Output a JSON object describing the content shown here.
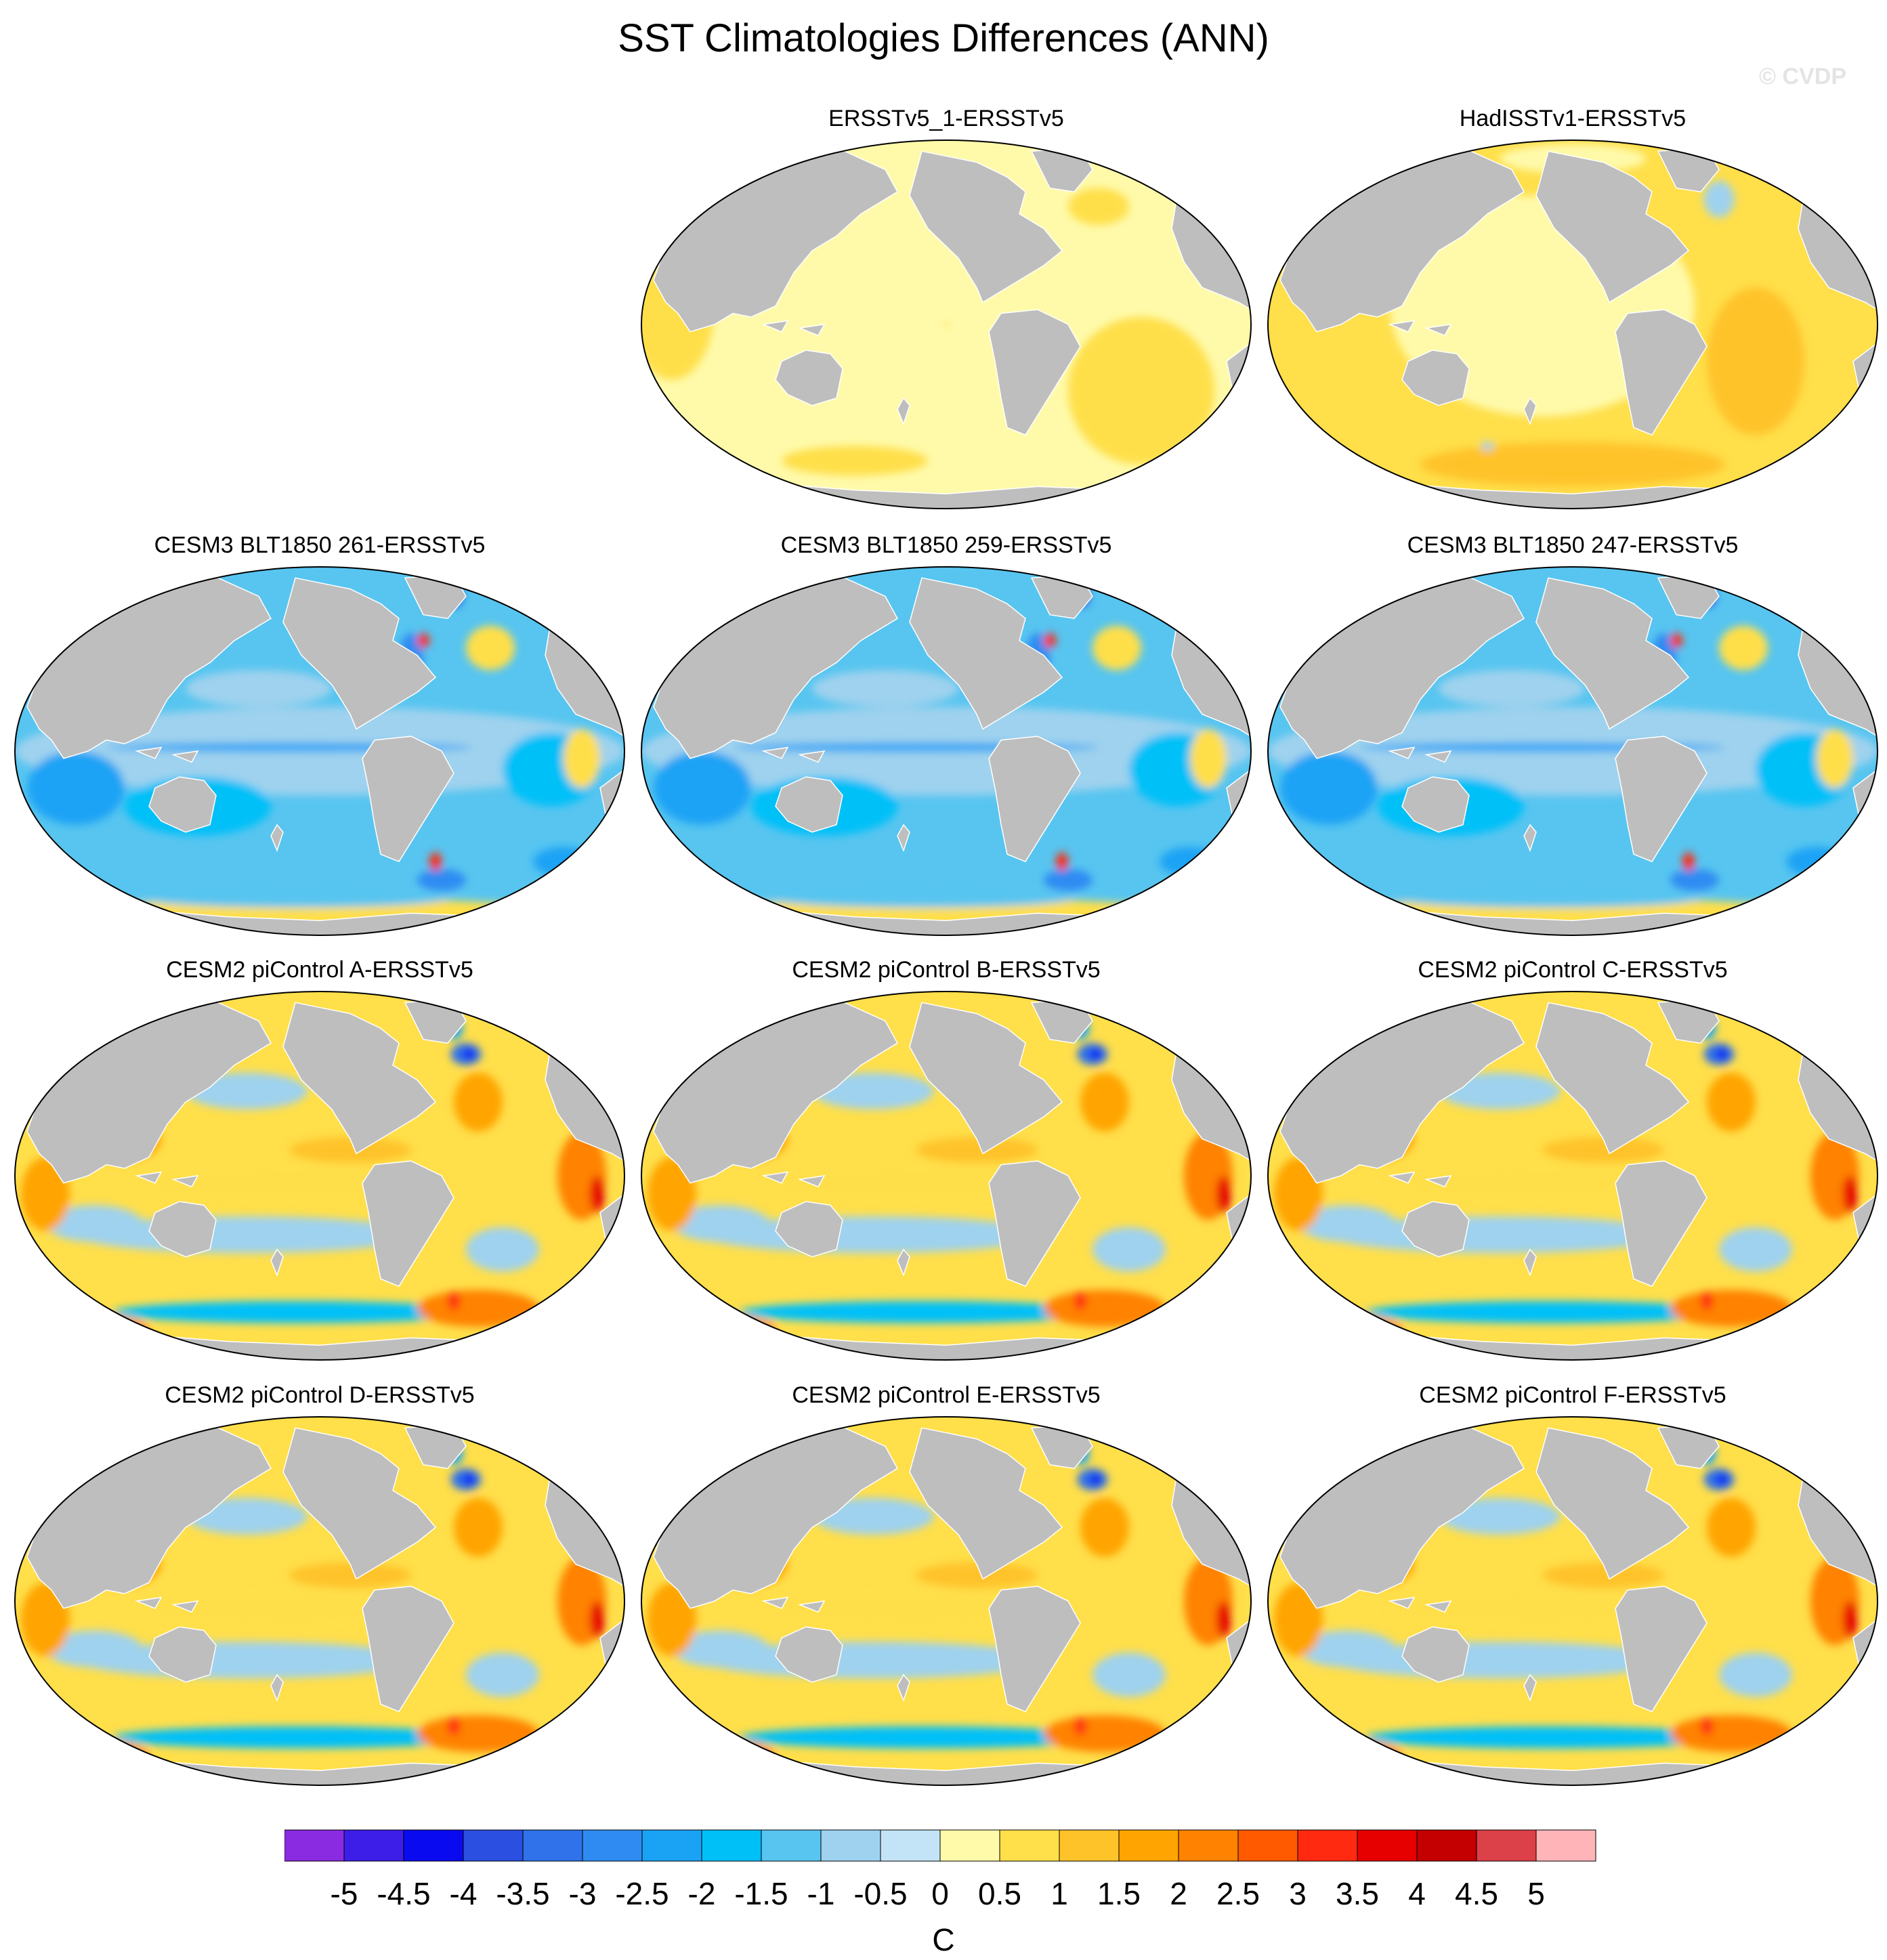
{
  "title": "SST Climatologies Differences (ANN)",
  "watermark": "© CVDP",
  "panels": [
    {
      "label": "ERSSTv5_1-ERSSTv5",
      "style": "obs_a"
    },
    {
      "label": "HadISSTv1-ERSSTv5",
      "style": "obs_b"
    },
    {
      "label": "CESM3 BLT1850 261-ERSSTv5",
      "style": "cesm3"
    },
    {
      "label": "CESM3 BLT1850 259-ERSSTv5",
      "style": "cesm3"
    },
    {
      "label": "CESM3 BLT1850 247-ERSSTv5",
      "style": "cesm3"
    },
    {
      "label": "CESM2 piControl A-ERSSTv5",
      "style": "cesm2"
    },
    {
      "label": "CESM2 piControl B-ERSSTv5",
      "style": "cesm2"
    },
    {
      "label": "CESM2 piControl C-ERSSTv5",
      "style": "cesm2"
    },
    {
      "label": "CESM2 piControl D-ERSSTv5",
      "style": "cesm2"
    },
    {
      "label": "CESM2 piControl E-ERSSTv5",
      "style": "cesm2"
    },
    {
      "label": "CESM2 piControl F-ERSSTv5",
      "style": "cesm2"
    }
  ],
  "colorbar": {
    "unit": "C",
    "tick_labels": [
      "-5",
      "-4.5",
      "-4",
      "-3.5",
      "-3",
      "-2.5",
      "-2",
      "-1.5",
      "-1",
      "-0.5",
      "0",
      "0.5",
      "1",
      "1.5",
      "2",
      "2.5",
      "3",
      "3.5",
      "4",
      "4.5",
      "5"
    ],
    "colors": [
      "#8a2be2",
      "#3d1ee8",
      "#0a0af0",
      "#2b4fe0",
      "#2f72ea",
      "#2f8bf2",
      "#1aa3f5",
      "#00c0f8",
      "#57c5f0",
      "#9fd2ee",
      "#c3e4f6",
      "#fffaaa",
      "#ffdf4a",
      "#ffc32a",
      "#ffa400",
      "#ff8200",
      "#ff5a00",
      "#ff2a10",
      "#e60000",
      "#c40000",
      "#dc4048",
      "#ffb4b8"
    ]
  },
  "land_color": "#bebebe",
  "chart_data": {
    "type": "map",
    "projection": "Robinson (global, Pacific-centred)",
    "variable": "SST climatology difference",
    "season": "ANN",
    "units": "C",
    "contour_levels": [
      -5,
      -4.5,
      -4,
      -3.5,
      -3,
      -2.5,
      -2,
      -1.5,
      -1,
      -0.5,
      0,
      0.5,
      1,
      1.5,
      2,
      2.5,
      3,
      3.5,
      4,
      4.5,
      5
    ]
  }
}
